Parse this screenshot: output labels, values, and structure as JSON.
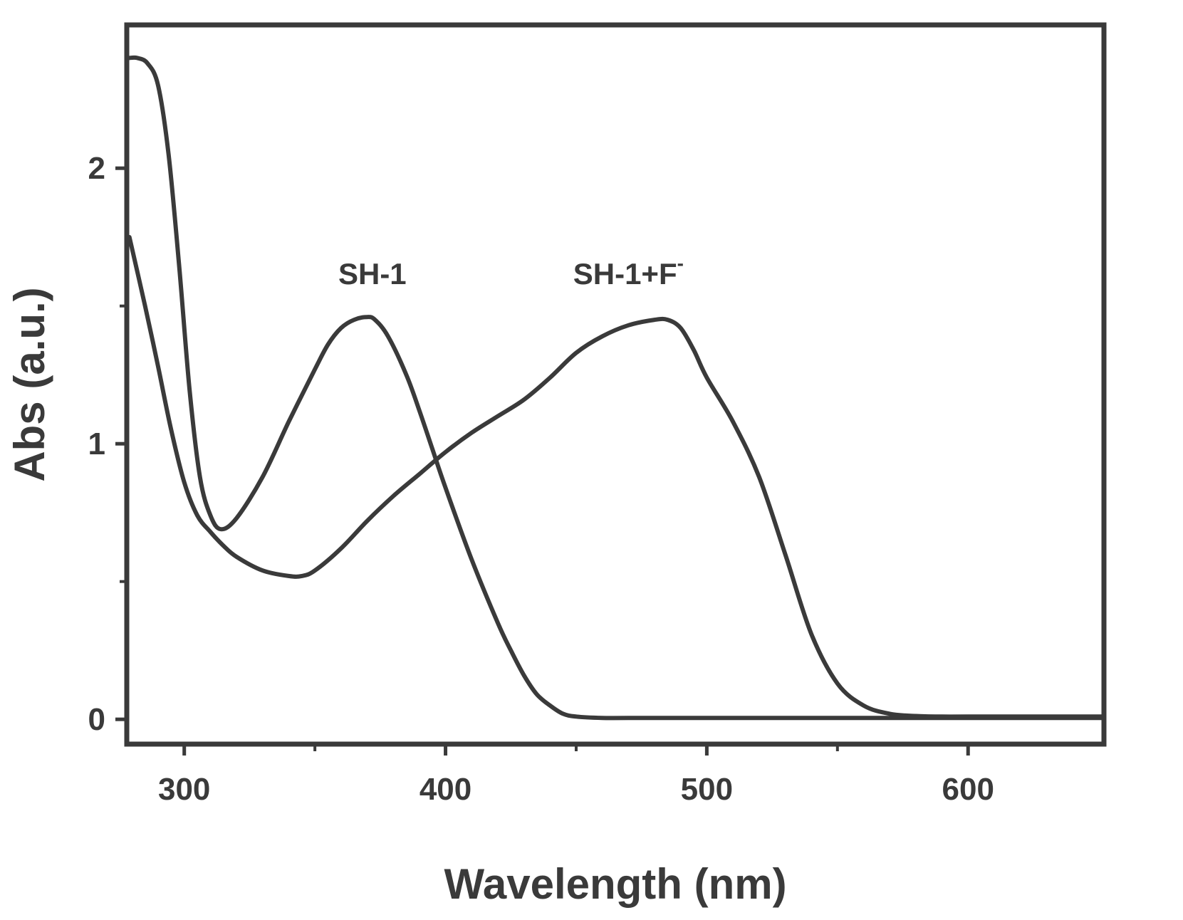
{
  "chart_data": {
    "type": "line",
    "title": "",
    "xlabel": "Wavelength (nm)",
    "ylabel": "Abs (a.u.)",
    "xlim": [
      278,
      652
    ],
    "ylim": [
      -0.09,
      2.52
    ],
    "grid": false,
    "x_ticks": [
      300,
      400,
      500,
      600
    ],
    "x_minor_ticks": [
      350,
      450,
      550
    ],
    "y_ticks": [
      0,
      1,
      2
    ],
    "y_minor_ticks": [
      0.5,
      1.5
    ],
    "series": [
      {
        "name": "SH-1",
        "label_text": "SH-1",
        "label_superscript": "",
        "color": "#3a3a3a",
        "x": [
          279,
          282,
          286,
          290,
          294,
          298,
          302,
          306,
          310,
          314,
          320,
          330,
          340,
          350,
          355,
          360,
          365,
          370,
          373,
          378,
          385,
          390,
          395,
          400,
          410,
          420,
          425,
          430,
          435,
          440,
          445,
          450,
          460,
          470,
          500,
          550,
          600,
          652
        ],
        "y": [
          2.4,
          2.4,
          2.38,
          2.3,
          2.05,
          1.65,
          1.2,
          0.88,
          0.74,
          0.69,
          0.73,
          0.88,
          1.08,
          1.27,
          1.36,
          1.42,
          1.45,
          1.46,
          1.45,
          1.39,
          1.25,
          1.12,
          0.98,
          0.84,
          0.58,
          0.35,
          0.25,
          0.16,
          0.09,
          0.05,
          0.02,
          0.01,
          0.005,
          0.005,
          0.005,
          0.005,
          0.005,
          0.005
        ]
      },
      {
        "name": "SH-1+F-",
        "label_text": "SH-1+F",
        "label_superscript": "-",
        "color": "#3a3a3a",
        "x": [
          279,
          285,
          290,
          295,
          300,
          305,
          310,
          315,
          320,
          330,
          340,
          345,
          350,
          360,
          370,
          380,
          390,
          400,
          410,
          420,
          430,
          440,
          450,
          460,
          470,
          480,
          485,
          490,
          495,
          500,
          510,
          520,
          530,
          540,
          550,
          560,
          570,
          580,
          590,
          600,
          620,
          652
        ],
        "y": [
          1.75,
          1.5,
          1.28,
          1.05,
          0.86,
          0.74,
          0.68,
          0.63,
          0.59,
          0.54,
          0.52,
          0.52,
          0.54,
          0.62,
          0.72,
          0.81,
          0.89,
          0.97,
          1.04,
          1.1,
          1.16,
          1.24,
          1.33,
          1.39,
          1.43,
          1.45,
          1.45,
          1.42,
          1.34,
          1.24,
          1.08,
          0.88,
          0.6,
          0.31,
          0.13,
          0.05,
          0.02,
          0.012,
          0.01,
          0.01,
          0.01,
          0.01
        ]
      }
    ],
    "annotations": [
      {
        "series": "SH-1",
        "text": "SH-1",
        "x": 372,
        "y": 1.58
      },
      {
        "series": "SH-1+F-",
        "text": "SH-1+F",
        "superscript": "-",
        "x": 470,
        "y": 1.58
      }
    ]
  }
}
